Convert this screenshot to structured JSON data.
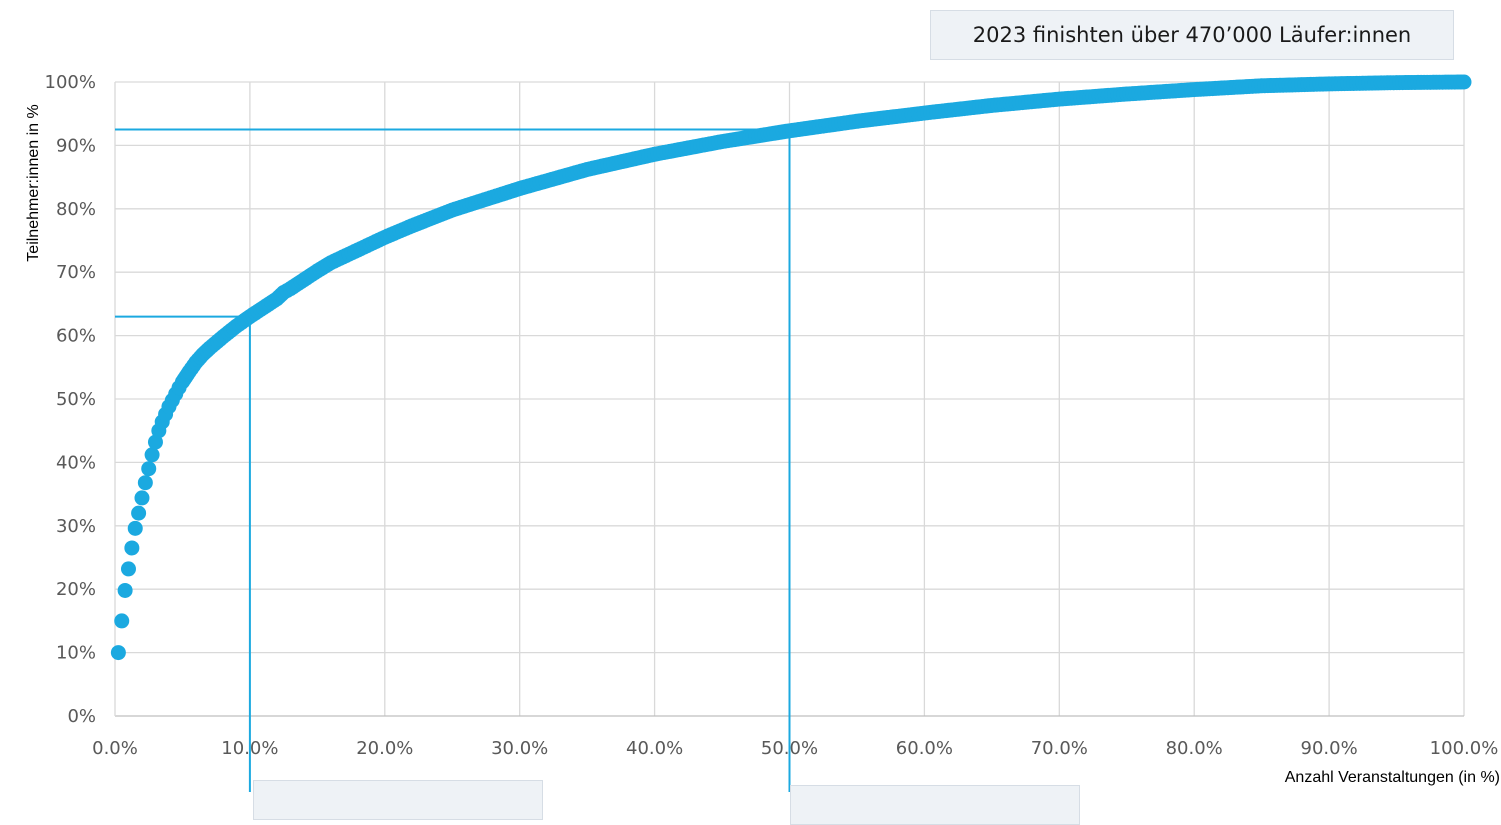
{
  "chart_data": {
    "type": "scatter",
    "headline": "2023 finishten über 470’000 Läufer:innen",
    "xlabel": "Anzahl Veranstaltungen (in %)",
    "ylabel": "Teilnehmer:innen in %",
    "xlim": [
      0,
      100
    ],
    "ylim": [
      0,
      100
    ],
    "x_ticks": [
      "0.0%",
      "10.0%",
      "20.0%",
      "30.0%",
      "40.0%",
      "50.0%",
      "60.0%",
      "70.0%",
      "80.0%",
      "90.0%",
      "100.0%"
    ],
    "y_ticks": [
      "0%",
      "10%",
      "20%",
      "30%",
      "40%",
      "50%",
      "60%",
      "70%",
      "80%",
      "90%",
      "100%"
    ],
    "grid": true,
    "marker_color": "#1ba9e0",
    "reference_color": "#1ba9e0",
    "reference_lines": [
      {
        "x": 10,
        "y": 63
      },
      {
        "x": 50,
        "y": 92.5
      }
    ],
    "series": [
      {
        "x": [
          0.25,
          0.5,
          0.75,
          1.0,
          1.25,
          1.5,
          1.75,
          2.0,
          2.25,
          2.5,
          2.75,
          3.0,
          3.25,
          3.5,
          3.75,
          4.0,
          4.25,
          4.5,
          4.75,
          5.0,
          5.5,
          6.0,
          6.5,
          7.0,
          8.0,
          9.0,
          10.0,
          11.0,
          12.0,
          12.5,
          13.0,
          14.0,
          15.0,
          16.0,
          18.0,
          20.0,
          22.0,
          25.0,
          30.0,
          35.0,
          40.0,
          45.0,
          50.0,
          55.0,
          60.0,
          65.0,
          70.0,
          75.0,
          80.0,
          85.0,
          90.0,
          95.0,
          100.0
        ],
        "y": [
          10.0,
          15.0,
          19.8,
          23.2,
          26.5,
          29.6,
          32.0,
          34.4,
          36.8,
          39.0,
          41.2,
          43.2,
          45.0,
          46.4,
          47.6,
          48.8,
          49.8,
          50.8,
          51.8,
          52.7,
          54.3,
          55.8,
          57.0,
          58.0,
          59.8,
          61.5,
          63.0,
          64.4,
          65.8,
          66.8,
          67.4,
          68.8,
          70.2,
          71.5,
          73.5,
          75.5,
          77.3,
          79.8,
          83.2,
          86.2,
          88.6,
          90.6,
          92.3,
          93.8,
          95.1,
          96.3,
          97.3,
          98.1,
          98.8,
          99.4,
          99.7,
          99.9,
          100.0
        ]
      }
    ]
  }
}
